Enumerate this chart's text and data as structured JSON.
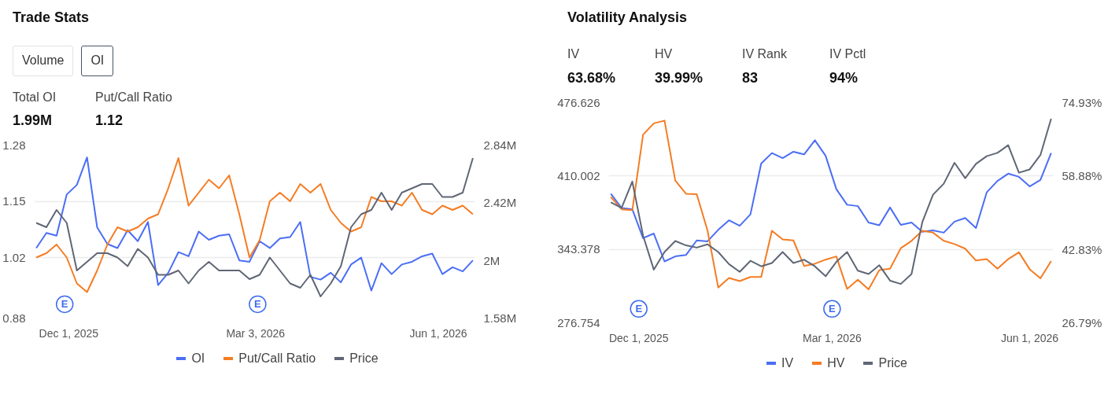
{
  "chart_data": [
    {
      "type": "line",
      "title": "Trade Stats",
      "annotations": [
        "Volume",
        "OI",
        "Total OI",
        "1.99M",
        "Put/Call Ratio",
        "1.12",
        {
          "text": "E",
          "x": "2025-11-29",
          "y": 0.912
        },
        {
          "text": "E",
          "x": "2026-03-04",
          "y": 0.912
        }
      ],
      "x": [
        "2025-11-15",
        "2025-11-20",
        "2025-11-25",
        "2025-11-30",
        "2025-12-05",
        "2025-12-10",
        "2025-12-15",
        "2025-12-20",
        "2025-12-25",
        "2025-12-30",
        "2026-01-04",
        "2026-01-09",
        "2026-01-14",
        "2026-01-19",
        "2026-01-24",
        "2026-01-29",
        "2026-02-03",
        "2026-02-08",
        "2026-02-13",
        "2026-02-18",
        "2026-02-23",
        "2026-02-28",
        "2026-03-05",
        "2026-03-10",
        "2026-03-15",
        "2026-03-20",
        "2026-03-25",
        "2026-03-30",
        "2026-04-04",
        "2026-04-09",
        "2026-04-14",
        "2026-04-19",
        "2026-04-24",
        "2026-04-29",
        "2026-05-04",
        "2026-05-09",
        "2026-05-14",
        "2026-05-19",
        "2026-05-24",
        "2026-05-29",
        "2026-06-03",
        "2026-06-08",
        "2026-06-13",
        "2026-06-18"
      ],
      "series": [
        {
          "name": "OI",
          "color": "#4b6ef5",
          "axis": "y2",
          "values": [
            2090000,
            2200000,
            2180000,
            2480000,
            2550000,
            2750000,
            2240000,
            2120000,
            2090000,
            2220000,
            2140000,
            2280000,
            1820000,
            1910000,
            2060000,
            2030000,
            2210000,
            2150000,
            2180000,
            2190000,
            2000000,
            1990000,
            2140000,
            2090000,
            2160000,
            2170000,
            2280000,
            1880000,
            1860000,
            1910000,
            1840000,
            1970000,
            2020000,
            1780000,
            1980000,
            1900000,
            1970000,
            1990000,
            2030000,
            2050000,
            1900000,
            1950000,
            1920000,
            2000000
          ]
        },
        {
          "name": "Put/Call Ratio",
          "color": "#f57c23",
          "axis": "y",
          "values": [
            1.02,
            1.03,
            1.05,
            1.02,
            0.96,
            0.94,
            0.99,
            1.05,
            1.09,
            1.08,
            1.09,
            1.11,
            1.12,
            1.18,
            1.25,
            1.14,
            1.17,
            1.2,
            1.18,
            1.21,
            1.12,
            1.02,
            1.06,
            1.15,
            1.17,
            1.15,
            1.19,
            1.17,
            1.19,
            1.13,
            1.1,
            1.08,
            1.09,
            1.16,
            1.15,
            1.15,
            1.14,
            1.17,
            1.13,
            1.12,
            1.14,
            1.13,
            1.14,
            1.12
          ]
        },
        {
          "name": "Price",
          "color": "#5f6675",
          "axis": "y",
          "values": [
            1.1,
            1.09,
            1.13,
            1.1,
            0.99,
            1.01,
            1.03,
            1.03,
            1.02,
            1.0,
            1.04,
            1.02,
            0.98,
            0.98,
            0.99,
            0.96,
            0.99,
            1.01,
            0.99,
            0.99,
            0.99,
            0.97,
            0.98,
            1.02,
            0.99,
            0.96,
            0.95,
            0.98,
            0.93,
            0.96,
            1.0,
            1.09,
            1.12,
            1.13,
            1.17,
            1.13,
            1.17,
            1.18,
            1.19,
            1.19,
            1.16,
            1.16,
            1.17,
            1.25
          ]
        }
      ],
      "xlim": [
        "2025-11-14",
        "2026-06-19"
      ],
      "xticks": [
        {
          "value": "2025-12-01",
          "label": "Dec 1, 2025"
        },
        {
          "value": "2026-03-03",
          "label": "Mar 3, 2026"
        },
        {
          "value": "2026-06-01",
          "label": "Jun 1, 2026"
        }
      ],
      "ylim": [
        0.88,
        1.28
      ],
      "yticks": [
        0.88,
        1.02,
        1.15,
        1.28
      ],
      "y2lim": [
        1580000,
        2840000
      ],
      "y2ticks": [
        {
          "value": 1580000,
          "label": "1.58M"
        },
        {
          "value": 2000000,
          "label": "2M"
        },
        {
          "value": 2420000,
          "label": "2.42M"
        },
        {
          "value": 2840000,
          "label": "2.84M"
        }
      ],
      "grid": "y",
      "legend": "bottom",
      "line_style": "solid",
      "marker": "none"
    },
    {
      "type": "line",
      "title": "Volatility Analysis",
      "annotations": [
        "IV",
        "63.68%",
        "HV",
        "39.99%",
        "IV Rank",
        "83",
        "IV Pctl",
        "94%",
        {
          "text": "E",
          "x": "2025-12-01",
          "y": 289.4
        },
        {
          "text": "E",
          "x": "2026-03-01",
          "y": 289.4
        }
      ],
      "x": [
        "2025-11-18",
        "2025-11-23",
        "2025-11-28",
        "2025-12-03",
        "2025-12-08",
        "2025-12-13",
        "2025-12-18",
        "2025-12-23",
        "2025-12-28",
        "2026-01-02",
        "2026-01-07",
        "2026-01-12",
        "2026-01-17",
        "2026-01-22",
        "2026-01-27",
        "2026-02-01",
        "2026-02-06",
        "2026-02-11",
        "2026-02-16",
        "2026-02-21",
        "2026-02-26",
        "2026-03-03",
        "2026-03-08",
        "2026-03-13",
        "2026-03-18",
        "2026-03-23",
        "2026-03-28",
        "2026-04-02",
        "2026-04-07",
        "2026-04-12",
        "2026-04-17",
        "2026-04-22",
        "2026-04-27",
        "2026-05-02",
        "2026-05-07",
        "2026-05-12",
        "2026-05-17",
        "2026-05-22",
        "2026-05-27",
        "2026-06-01",
        "2026-06-06",
        "2026-06-11"
      ],
      "series": [
        {
          "name": "IV",
          "color": "#4b6ef5",
          "axis": "y2",
          "values": [
            55.0,
            51.9,
            51.6,
            45.3,
            46.3,
            40.2,
            41.3,
            41.6,
            44.8,
            44.6,
            47.1,
            49.2,
            48.0,
            50.5,
            61.6,
            63.9,
            62.8,
            64.2,
            63.6,
            66.7,
            63.3,
            56.0,
            52.6,
            52.3,
            48.7,
            48.1,
            52.0,
            48.2,
            48.7,
            46.7,
            47.0,
            46.5,
            48.9,
            49.7,
            47.5,
            55.3,
            57.8,
            59.4,
            58.7,
            56.6,
            58.0,
            63.9
          ]
        },
        {
          "name": "HV",
          "color": "#f57c23",
          "axis": "y2",
          "values": [
            54.3,
            51.6,
            51.4,
            67.9,
            70.4,
            71.0,
            57.9,
            55.0,
            54.9,
            47.0,
            34.5,
            36.6,
            35.9,
            36.8,
            36.8,
            46.9,
            45.0,
            44.8,
            39.2,
            39.7,
            40.6,
            41.3,
            34.2,
            36.2,
            34.1,
            38.3,
            38.6,
            43.1,
            44.7,
            46.9,
            46.5,
            44.7,
            44.0,
            43.0,
            40.4,
            40.7,
            38.6,
            40.7,
            42.2,
            38.5,
            36.5,
            40.3
          ]
        },
        {
          "name": "Price",
          "color": "#5f6675",
          "axis": "y",
          "values": [
            386,
            381,
            405,
            356,
            325,
            341,
            351,
            347,
            345,
            348,
            341,
            330,
            323,
            333,
            328,
            331,
            341,
            331,
            334,
            328,
            319,
            332,
            341,
            324,
            321,
            329,
            315,
            312,
            321,
            368,
            393,
            403,
            422,
            408,
            421,
            428,
            431,
            438,
            413,
            416,
            429,
            462
          ]
        }
      ],
      "xlim": [
        "2025-11-17",
        "2026-06-12"
      ],
      "xticks": [
        {
          "value": "2025-12-01",
          "label": "Dec 1, 2025"
        },
        {
          "value": "2026-03-01",
          "label": "Mar 1, 2026"
        },
        {
          "value": "2026-06-01",
          "label": "Jun 1, 2026"
        }
      ],
      "ylim": [
        276.754,
        476.626
      ],
      "yticks": [
        276.754,
        343.378,
        410.002,
        476.626
      ],
      "y2lim": [
        26.79,
        74.93
      ],
      "y2ticks": [
        {
          "value": 26.79,
          "label": "26.79%"
        },
        {
          "value": 42.83,
          "label": "42.83%"
        },
        {
          "value": 58.88,
          "label": "58.88%"
        },
        {
          "value": 74.93,
          "label": "74.93%"
        }
      ],
      "grid": "y",
      "legend": "bottom",
      "line_style": "solid",
      "marker": "none"
    }
  ]
}
